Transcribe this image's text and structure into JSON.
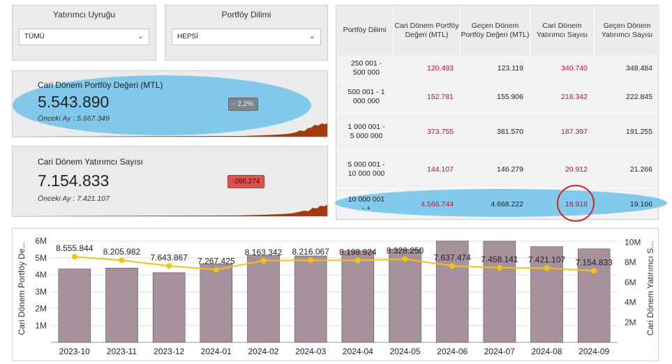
{
  "filters": {
    "investor_nationality": {
      "title": "Yatırımcı Uyruğu",
      "selected": "TÜMÜ"
    },
    "portfolio_range": {
      "title": "Portföy  Dilimi",
      "selected": "HEPSİ"
    }
  },
  "kpi_portfolio": {
    "title": "Cari Dönem Portföy Değeri (MTL)",
    "value": "5.543.890",
    "change": "- 2,2%",
    "previous": "Önceki Ay : 5.667.349"
  },
  "kpi_investors": {
    "title": "Cari Dönem Yatırımcı Sayısı",
    "value": "7.154.833",
    "change": "-266.274",
    "previous": "Önceki Ay : 7.421.107"
  },
  "table": {
    "headers": [
      "Portföy Dilimi",
      "Cari Dönem Portföy Değeri (MTL)",
      "Geçen Dönem Portföy Değeri (MTL)",
      "Cari Dönem Yatırımcı Sayısı",
      "Geçen Dönem Yatırımcı Sayısı"
    ],
    "rows": [
      [
        "250 001 - 500 000",
        "120.493",
        "123.119",
        "340.740",
        "348.484"
      ],
      [
        "500 001 - 1 000 000",
        "152.781",
        "155.906",
        "218.342",
        "222.845"
      ],
      [
        "1 000 001 - 5 000 000",
        "373.755",
        "381.570",
        "187.397",
        "191.255"
      ],
      [
        "5 000 001 - 10 000 000",
        "144.107",
        "146.279",
        "20.912",
        "21.266"
      ],
      [
        "10 000 001 - +",
        "4.566.744",
        "4.668.222",
        "18.918",
        "19.166"
      ]
    ]
  },
  "colors": {
    "bar": "#a8919f",
    "line": "#f2c40c",
    "negative": "#c8102e",
    "highlight": "#6ec3eb",
    "spark": "#a53a0c",
    "badge_neutral": "#7d8590",
    "badge_negative": "#e2504a"
  },
  "chart_data": {
    "type": "bar",
    "categories": [
      "2023-10",
      "2023-11",
      "2023-12",
      "2024-01",
      "2024-02",
      "2024-03",
      "2024-04",
      "2024-05",
      "2024-06",
      "2024-07",
      "2024-08",
      "2024-09"
    ],
    "series": [
      {
        "name": "Cari Dönem Portföy Değeri",
        "type": "bar",
        "axis": "left",
        "values": [
          4350000,
          4400000,
          4130000,
          4650000,
          5140000,
          5120000,
          5420000,
          5520000,
          6000000,
          5990000,
          5670000,
          5540000
        ]
      },
      {
        "name": "Cari Dönem Yatırımcı Sayısı",
        "type": "line",
        "axis": "right",
        "values": [
          8555844,
          8205982,
          7643867,
          7267425,
          8163342,
          8216067,
          8198924,
          8328250,
          7637474,
          7458141,
          7421107,
          7154833
        ],
        "labels": [
          "8.555.844",
          "8.205.982",
          "7.643.867",
          "7.267.425",
          "8.163.342",
          "8.216.067",
          "8.198.924",
          "8.328.250",
          "7.637.474",
          "7.458.141",
          "7.421.107",
          "7.154.833"
        ]
      }
    ],
    "ylabel": "Cari Dönem Portföy De...",
    "y2label": "Cari Dönem Yatırımcı S...",
    "ylim": [
      0,
      6400000
    ],
    "y2lim": [
      0,
      10800000
    ],
    "yticks": [
      1000000,
      2000000,
      3000000,
      4000000,
      5000000,
      6000000
    ],
    "ytick_labels": [
      "1M",
      "2M",
      "3M",
      "4M",
      "5M",
      "6M"
    ],
    "y2ticks": [
      2000000,
      4000000,
      6000000,
      8000000,
      10000000
    ],
    "y2tick_labels": [
      "2M",
      "4M",
      "6M",
      "8M",
      "10M"
    ],
    "grid": true
  }
}
